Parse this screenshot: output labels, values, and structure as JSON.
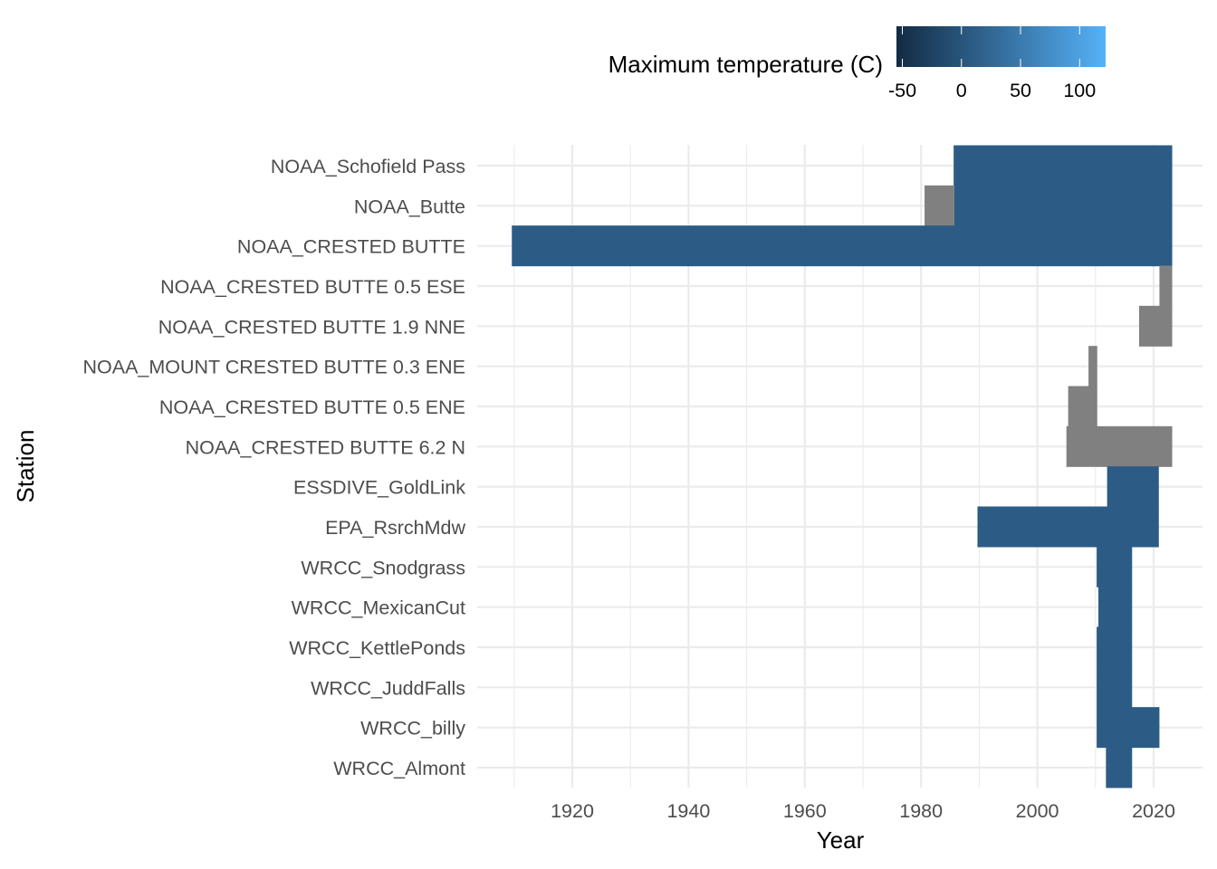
{
  "chart_data": {
    "type": "heatmap",
    "title": "",
    "xlabel": "Year",
    "ylabel": "Station",
    "xlim": [
      1910,
      2024
    ],
    "x_ticks": [
      "1920",
      "1940",
      "1960",
      "1980",
      "2000",
      "2020"
    ],
    "grid": true,
    "legend": {
      "title": "Maximum temperature (C)",
      "position": "top",
      "ticks": [
        "-50",
        "0",
        "50",
        "100"
      ],
      "range": [
        -55,
        122
      ],
      "color_low": "#132B43",
      "color_high": "#56B1F7",
      "na_color": "#808080"
    },
    "stations": [
      "NOAA_Schofield Pass",
      "NOAA_Butte",
      "NOAA_CRESTED BUTTE",
      "NOAA_CRESTED BUTTE 0.5 ESE",
      "NOAA_CRESTED BUTTE 1.9 NNE",
      "NOAA_MOUNT CRESTED BUTTE 0.3 ENE",
      "NOAA_CRESTED BUTTE 0.5 ENE",
      "NOAA_CRESTED BUTTE 6.2 N",
      "ESSDIVE_GoldLink",
      "EPA_RsrchMdw",
      "WRCC_Snodgrass",
      "WRCC_MexicanCut",
      "WRCC_KettlePonds",
      "WRCC_JuddFalls",
      "WRCC_billy",
      "WRCC_Almont"
    ],
    "segments": [
      {
        "station": "NOAA_Schofield Pass",
        "start": 1985.6,
        "end": 2023.2,
        "value": 10
      },
      {
        "station": "NOAA_Butte",
        "start": 1980.6,
        "end": 1985.7,
        "value": null
      },
      {
        "station": "NOAA_Butte",
        "start": 1985.7,
        "end": 2023.2,
        "value": 10
      },
      {
        "station": "NOAA_CRESTED BUTTE",
        "start": 1909.6,
        "end": 2023.2,
        "value": 10
      },
      {
        "station": "NOAA_CRESTED BUTTE 0.5 ESE",
        "start": 2021.0,
        "end": 2023.2,
        "value": null
      },
      {
        "station": "NOAA_CRESTED BUTTE 1.9 NNE",
        "start": 2017.5,
        "end": 2023.2,
        "value": null
      },
      {
        "station": "NOAA_MOUNT CRESTED BUTTE 0.3 ENE",
        "start": 2008.8,
        "end": 2010.3,
        "value": null
      },
      {
        "station": "NOAA_CRESTED BUTTE 0.5 ENE",
        "start": 2005.3,
        "end": 2010.3,
        "value": null
      },
      {
        "station": "NOAA_CRESTED BUTTE 6.2 N",
        "start": 2005.0,
        "end": 2023.2,
        "value": null
      },
      {
        "station": "ESSDIVE_GoldLink",
        "start": 2012.0,
        "end": 2020.9,
        "value": 10
      },
      {
        "station": "EPA_RsrchMdw",
        "start": 1989.7,
        "end": 2020.9,
        "value": 10
      },
      {
        "station": "WRCC_Snodgrass",
        "start": 2010.2,
        "end": 2016.3,
        "value": 10
      },
      {
        "station": "WRCC_MexicanCut",
        "start": 2010.5,
        "end": 2016.3,
        "value": 10
      },
      {
        "station": "WRCC_KettlePonds",
        "start": 2010.2,
        "end": 2016.3,
        "value": 10
      },
      {
        "station": "WRCC_JuddFalls",
        "start": 2010.2,
        "end": 2016.3,
        "value": 10
      },
      {
        "station": "WRCC_billy",
        "start": 2010.2,
        "end": 2021.0,
        "value": 10
      },
      {
        "station": "WRCC_Almont",
        "start": 2011.8,
        "end": 2016.3,
        "value": 10
      }
    ]
  }
}
